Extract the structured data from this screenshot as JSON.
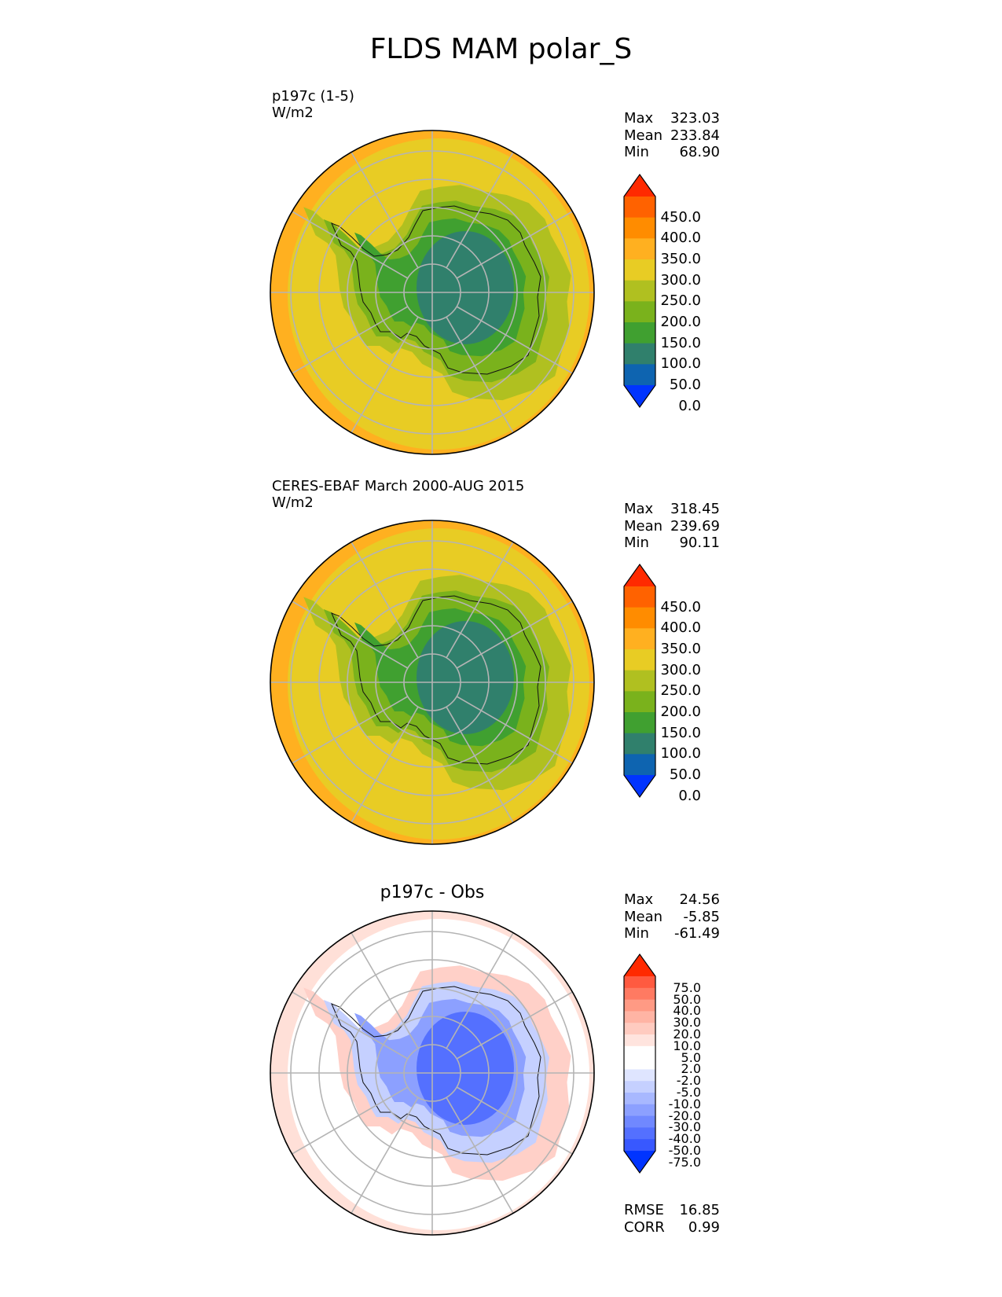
{
  "title": "FLDS MAM polar_S",
  "panels": [
    {
      "id": "test",
      "label_lines": [
        "p197c (1-5)",
        "W/m2"
      ],
      "centered_title": "",
      "stats": [
        {
          "k": "Max",
          "v": "323.03"
        },
        {
          "k": "Mean",
          "v": "233.84"
        },
        {
          "k": "Min",
          "v": "68.90"
        }
      ],
      "colorbar": {
        "colors": [
          "#ff2a00",
          "#ff6200",
          "#ff8c00",
          "#ffb020",
          "#e8cc24",
          "#b0c020",
          "#7ab21c",
          "#40a030",
          "#30806c",
          "#0e64b0",
          "#0034ff"
        ],
        "ticks": [
          "450.0",
          "400.0",
          "350.0",
          "300.0",
          "250.0",
          "200.0",
          "150.0",
          "100.0",
          "50.0",
          "0.0"
        ]
      },
      "map_colors": {
        "ocean_outer": "#ffb020",
        "ocean": "#e8cc24",
        "shelf": "#b0c020",
        "coast": "#7ab21c",
        "interior": "#40a030",
        "plateau": "#30806c"
      },
      "metrics": []
    },
    {
      "id": "ref",
      "label_lines": [
        "CERES-EBAF March 2000-AUG 2015",
        "W/m2"
      ],
      "centered_title": "",
      "stats": [
        {
          "k": "Max",
          "v": "318.45"
        },
        {
          "k": "Mean",
          "v": "239.69"
        },
        {
          "k": "Min",
          "v": "90.11"
        }
      ],
      "colorbar": {
        "colors": [
          "#ff2a00",
          "#ff6200",
          "#ff8c00",
          "#ffb020",
          "#e8cc24",
          "#b0c020",
          "#7ab21c",
          "#40a030",
          "#30806c",
          "#0e64b0",
          "#0034ff"
        ],
        "ticks": [
          "450.0",
          "400.0",
          "350.0",
          "300.0",
          "250.0",
          "200.0",
          "150.0",
          "100.0",
          "50.0",
          "0.0"
        ]
      },
      "map_colors": {
        "ocean_outer": "#ffb020",
        "ocean": "#e8cc24",
        "shelf": "#b0c020",
        "coast": "#7ab21c",
        "interior": "#40a030",
        "plateau": "#30806c"
      },
      "metrics": []
    },
    {
      "id": "diff",
      "label_lines": [],
      "centered_title": "p197c - Obs",
      "stats": [
        {
          "k": "Max",
          "v": "24.56"
        },
        {
          "k": "Mean",
          "v": "-5.85"
        },
        {
          "k": "Min",
          "v": "-61.49"
        }
      ],
      "colorbar": {
        "colors": [
          "#ff2a00",
          "#ff5a40",
          "#ff7a62",
          "#ff9a84",
          "#ffb4a4",
          "#ffcbc0",
          "#ffe4de",
          "#ffffff",
          "#ffffff",
          "#dfe5ff",
          "#c5d0ff",
          "#a8b8ff",
          "#8ca0ff",
          "#7088ff",
          "#5470ff",
          "#3858ff",
          "#0034ff"
        ],
        "ticks": [
          "75.0",
          "50.0",
          "40.0",
          "30.0",
          "20.0",
          "10.0",
          "5.0",
          "2.0",
          "-2.0",
          "-5.0",
          "-10.0",
          "-20.0",
          "-30.0",
          "-40.0",
          "-50.0",
          "-75.0"
        ]
      },
      "map_colors": {
        "ocean_outer": "#ffe0d8",
        "ocean": "#ffffff",
        "shelf": "#ffd0c8",
        "coast": "#c5d0ff",
        "interior": "#8ca0ff",
        "plateau": "#5470ff"
      },
      "metrics": [
        {
          "k": "RMSE",
          "v": "16.85"
        },
        {
          "k": "CORR",
          "v": "0.99"
        }
      ]
    }
  ]
}
